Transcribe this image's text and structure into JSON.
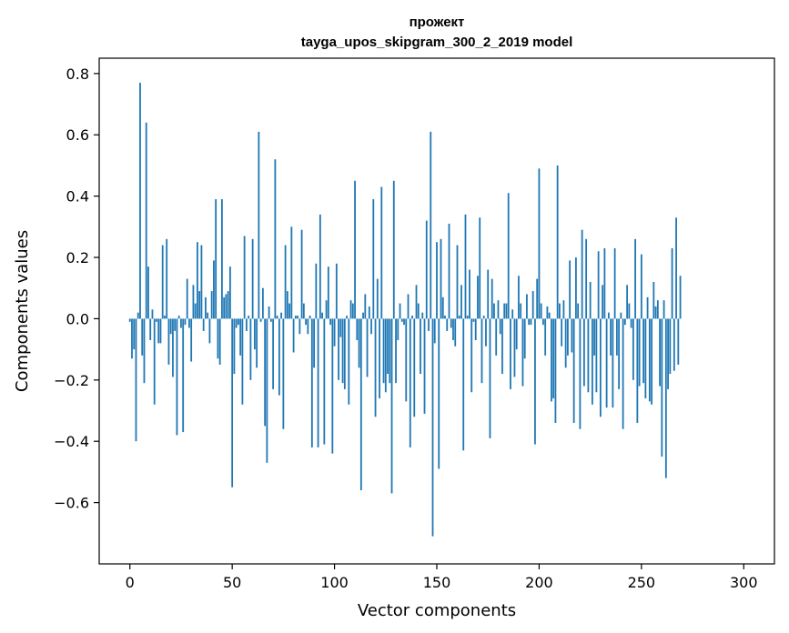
{
  "chart_data": {
    "type": "bar",
    "title_lines": [
      "прожект",
      "tayga_upos_skipgram_300_2_2019 model"
    ],
    "xlabel": "Vector components",
    "ylabel": "Components values",
    "xlim": [
      -15,
      315
    ],
    "ylim": [
      -0.8,
      0.85
    ],
    "xticks": [
      0,
      50,
      100,
      150,
      200,
      250,
      300
    ],
    "xtick_labels": [
      "0",
      "50",
      "100",
      "150",
      "200",
      "250",
      "300"
    ],
    "yticks": [
      -0.6,
      -0.4,
      -0.2,
      0.0,
      0.2,
      0.4,
      0.6,
      0.8
    ],
    "ytick_labels": [
      "−0.6",
      "−0.4",
      "−0.2",
      "0.0",
      "0.2",
      "0.4",
      "0.6",
      "0.8"
    ],
    "grid": false,
    "bar_color": "#1f77b4",
    "series": [
      {
        "values": [
          -0.01,
          -0.13,
          -0.1,
          -0.4,
          0.02,
          0.77,
          -0.12,
          -0.21,
          0.64,
          0.17,
          -0.07,
          0.03,
          -0.28,
          -0.01,
          -0.08,
          -0.08,
          0.24,
          0.01,
          0.26,
          -0.15,
          -0.05,
          -0.19,
          -0.04,
          -0.38,
          0.01,
          -0.03,
          -0.37,
          -0.02,
          0.13,
          -0.03,
          -0.14,
          0.11,
          0.05,
          0.25,
          0.09,
          0.24,
          -0.04,
          0.07,
          0.02,
          -0.08,
          0.09,
          0.19,
          0.39,
          -0.13,
          -0.15,
          0.39,
          0.07,
          0.08,
          0.09,
          0.17,
          -0.55,
          -0.18,
          -0.03,
          -0.02,
          -0.12,
          -0.28,
          0.27,
          -0.04,
          0.01,
          -0.2,
          0.26,
          -0.1,
          -0.16,
          0.61,
          -0.01,
          0.1,
          -0.35,
          -0.47,
          0.04,
          -0.01,
          -0.23,
          0.52,
          0.01,
          -0.25,
          0.02,
          -0.36,
          0.24,
          0.09,
          0.05,
          0.3,
          -0.11,
          0.01,
          0.01,
          -0.05,
          0.29,
          0.05,
          -0.02,
          -0.05,
          0.01,
          -0.42,
          -0.16,
          0.18,
          -0.42,
          0.34,
          0.02,
          -0.41,
          0.06,
          0.17,
          -0.02,
          -0.44,
          -0.09,
          0.18,
          -0.2,
          -0.06,
          -0.21,
          -0.23,
          0.01,
          -0.28,
          0.06,
          0.05,
          0.45,
          -0.07,
          -0.16,
          -0.56,
          0.02,
          0.08,
          -0.19,
          0.04,
          -0.05,
          0.39,
          -0.32,
          0.13,
          -0.26,
          0.43,
          -0.21,
          -0.24,
          -0.18,
          -0.21,
          -0.57,
          0.45,
          -0.21,
          -0.07,
          0.05,
          -0.01,
          -0.02,
          -0.27,
          0.08,
          -0.42,
          0.01,
          -0.32,
          0.11,
          0.05,
          -0.18,
          0.02,
          -0.31,
          0.32,
          -0.04,
          0.61,
          -0.71,
          -0.08,
          0.25,
          -0.49,
          0.26,
          0.07,
          0.01,
          -0.04,
          0.31,
          -0.03,
          -0.07,
          -0.09,
          0.24,
          0.01,
          0.11,
          -0.43,
          0.34,
          0.01,
          0.16,
          -0.24,
          -0.01,
          -0.07,
          0.14,
          0.33,
          -0.21,
          0.01,
          -0.09,
          0.16,
          -0.39,
          0.13,
          0.05,
          -0.12,
          0.06,
          -0.05,
          -0.18,
          0.05,
          0.05,
          0.41,
          -0.23,
          0.03,
          -0.19,
          -0.1,
          0.14,
          0.05,
          -0.22,
          -0.13,
          0.08,
          -0.02,
          -0.02,
          0.09,
          -0.41,
          0.13,
          0.49,
          0.05,
          -0.02,
          -0.12,
          0.04,
          0.02,
          -0.27,
          -0.26,
          -0.34,
          0.5,
          0.05,
          -0.09,
          0.06,
          -0.16,
          -0.12,
          0.19,
          -0.11,
          -0.34,
          0.2,
          0.05,
          -0.36,
          0.29,
          -0.22,
          0.26,
          -0.24,
          0.12,
          -0.28,
          -0.12,
          -0.24,
          0.22,
          -0.32,
          0.11,
          0.23,
          -0.29,
          0.02,
          -0.12,
          -0.29,
          0.23,
          -0.12,
          -0.23,
          0.02,
          -0.36,
          -0.02,
          0.11,
          0.05,
          -0.03,
          -0.2,
          0.26,
          -0.34,
          -0.22,
          0.21,
          -0.21,
          -0.26,
          0.07,
          -0.27,
          -0.28,
          0.12,
          0.04,
          0.06,
          -0.22,
          -0.45,
          0.06,
          -0.52,
          -0.23,
          -0.18,
          0.23,
          -0.17,
          0.33,
          -0.15,
          0.14
        ]
      }
    ]
  }
}
